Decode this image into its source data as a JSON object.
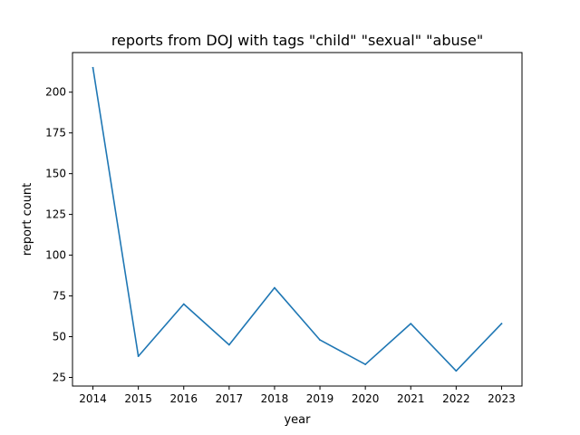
{
  "chart_data": {
    "type": "line",
    "title": "reports from DOJ with tags \"child\" \"sexual\" \"abuse\"",
    "xlabel": "year",
    "ylabel": "report count",
    "x": [
      2014,
      2015,
      2016,
      2017,
      2018,
      2019,
      2020,
      2021,
      2022,
      2023
    ],
    "series": [
      {
        "values": [
          215,
          38,
          70,
          45,
          80,
          48,
          33,
          58,
          29,
          58
        ],
        "color": "#1f77b4"
      }
    ],
    "xticks": [
      "2014",
      "2015",
      "2016",
      "2017",
      "2018",
      "2019",
      "2020",
      "2021",
      "2022",
      "2023"
    ],
    "yticks": [
      25,
      50,
      75,
      100,
      125,
      150,
      175,
      200
    ],
    "xlim": [
      2013.55,
      2023.45
    ],
    "ylim": [
      19.7,
      224.3
    ],
    "grid": false,
    "legend": "none"
  }
}
